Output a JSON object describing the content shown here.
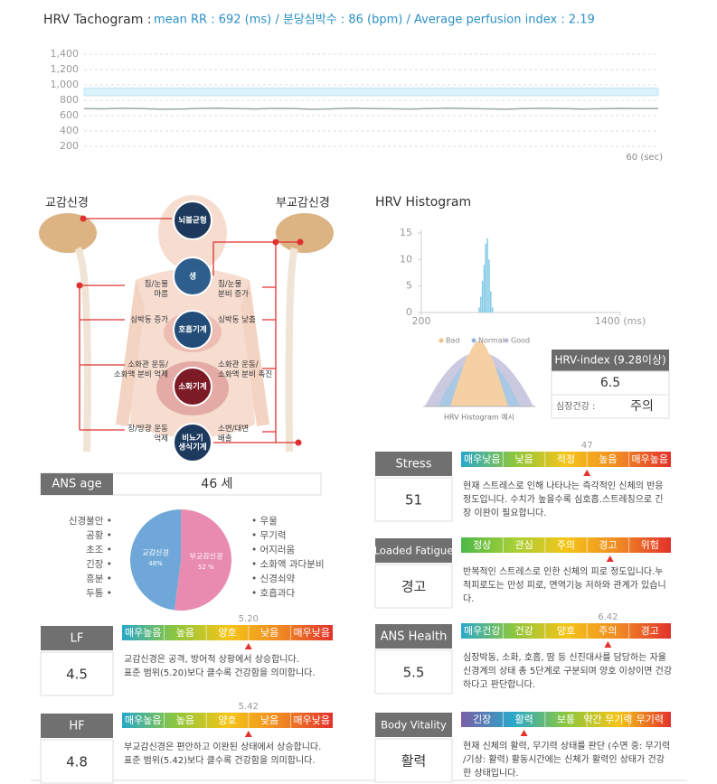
{
  "tachogram": {
    "label": "HRV Tachogram :",
    "summary": "mean RR : 692 (ms) / 분당심박수 : 86 (bpm) / Average perfusion index : 2.19"
  },
  "chart_data": [
    {
      "type": "line",
      "x": [
        0,
        2,
        4,
        6,
        8,
        10,
        12,
        14,
        16,
        18,
        20,
        22,
        24,
        26,
        28,
        30,
        32,
        34,
        36,
        38,
        40,
        42,
        44,
        46,
        48,
        50,
        52,
        54,
        56,
        58,
        60
      ],
      "values": [
        692,
        688,
        695,
        690,
        684,
        686,
        693,
        698,
        691,
        687,
        694,
        690,
        682,
        688,
        696,
        692,
        689,
        685,
        691,
        697,
        693,
        688,
        684,
        690,
        695,
        691,
        686,
        689,
        694,
        692,
        690
      ],
      "xlim": [
        0,
        60
      ],
      "xlabel": "60 (sec)",
      "ylim": [
        200,
        1400
      ],
      "yticks": [
        {
          "value": 1400,
          "label": "1,400"
        },
        {
          "value": 1200,
          "label": "1,200"
        },
        {
          "value": 1000,
          "label": "1,000"
        },
        800,
        600,
        400,
        200
      ],
      "grid": true,
      "color": "#9aa8aa",
      "band": [
        860,
        960
      ],
      "band_color": "#d9f1fa"
    },
    {
      "type": "histogram",
      "title": "HRV Histogram",
      "bins": [
        545,
        555,
        565,
        575,
        585,
        595,
        605,
        615,
        625,
        635
      ],
      "values": [
        1,
        3,
        6,
        9,
        13,
        14,
        10,
        4,
        1
      ],
      "xlim": [
        200,
        1400
      ],
      "xticks": [
        200,
        {
          "value": 1400,
          "label": "1400 (ms)"
        }
      ],
      "ylim": [
        0,
        15
      ],
      "yticks": [
        0,
        5,
        10,
        15
      ],
      "color": "#7ec8e6"
    },
    {
      "type": "pie",
      "categories": [
        "교감신경",
        "부교감신경"
      ],
      "values": [
        48,
        52
      ],
      "value_labels": [
        "48%",
        "52 %"
      ],
      "colors": [
        "#6fa8d8",
        "#e98bb0"
      ]
    }
  ],
  "ans_diagram": {
    "left_title": "교감신경",
    "right_title": "부교감신경",
    "nodes": [
      [
        "뇌불균형"
      ],
      [
        "생"
      ],
      [
        "호흡기계"
      ],
      [
        "소화기계"
      ],
      [
        "비뇨기",
        "생식기계"
      ]
    ],
    "left_labels": [
      [
        "침/눈물",
        "마름"
      ],
      [
        "심박동 증가"
      ],
      [
        "소화관 운동/",
        "소화액 분비 억제"
      ],
      [
        "장/방광 운동",
        "억제"
      ]
    ],
    "right_labels": [
      [
        "침/눈물",
        "분비 증가"
      ],
      [
        "심박동 낮춤"
      ],
      [
        "소화관 운동/",
        "소화액 분비 촉진"
      ],
      [
        "소변/대변",
        "배출"
      ]
    ]
  },
  "ans_age": {
    "label": "ANS age",
    "value": "46 세"
  },
  "symptoms": {
    "left": [
      "신경불안 •",
      "공황 •",
      "초조 •",
      "긴장 •",
      "흥분 •",
      "두통 •"
    ],
    "right": [
      "• 우울",
      "• 무기력",
      "• 어지러움",
      "• 소화액 과다분비",
      "• 신경쇠약",
      "• 호흡과다"
    ]
  },
  "hrv_example": {
    "legend": [
      {
        "name": "Bad",
        "color": "#f2c185"
      },
      {
        "name": "Normal",
        "color": "#8db6dc"
      },
      {
        "name": "Good",
        "color": "#b9b7d6"
      }
    ],
    "caption": "HRV Histogram 예시"
  },
  "hrv_index": {
    "title": "HRV-index (9.28이상)",
    "value": "6.5",
    "label": "심장건강 :",
    "status": "주의"
  },
  "indicators": [
    {
      "label": "LF",
      "value": "4.5",
      "scale": [
        "매우높음",
        "높음",
        "양호",
        "낮음",
        "매우낮음"
      ],
      "reference": "5.20",
      "colors": [
        "#2aa8c9",
        "#8cc63f",
        "#f5c518",
        "#f08a24",
        "#e2322b"
      ],
      "description": [
        "교감신경은 공격, 방어적 상황에서 상승합니다.",
        "표준 범위(5.20)보다 클수록 건강함을 의미합니다."
      ]
    },
    {
      "label": "HF",
      "value": "4.8",
      "scale": [
        "매우높음",
        "높음",
        "양호",
        "낮음",
        "매우낮음"
      ],
      "reference": "5.42",
      "colors": [
        "#2aa8c9",
        "#8cc63f",
        "#f5c518",
        "#f08a24",
        "#e2322b"
      ],
      "description": [
        "부교감신경은 편안하고 이완된 상태에서 상승합니다.",
        "표준 범위(5.42)보다 클수록 건강함을 의미합니다."
      ]
    },
    {
      "label": "Stress",
      "value": "51",
      "scale": [
        "매우낮음",
        "낮음",
        "적정",
        "높음",
        "매우높음"
      ],
      "reference": "47",
      "colors": [
        "#2aa8c9",
        "#8cc63f",
        "#f5c518",
        "#f08a24",
        "#e2322b"
      ],
      "description": [
        "현재 스트레스로 인해 나타나는 즉각적인 신체의 반응",
        "정도입니다. 수치가 높을수록 심호흡.스트레칭으로 긴",
        "장 이완이 필요합니다."
      ]
    },
    {
      "label": "Loaded Fatigue",
      "value": "경고",
      "scale": [
        "정상",
        "관심",
        "주의",
        "경고",
        "위험"
      ],
      "colors": [
        "#4cb848",
        "#a6cf38",
        "#f5c518",
        "#f08a24",
        "#e2322b"
      ],
      "description": [
        "반복적인 스트레스로 인한 신체의 피로 정도입니다.누",
        "적피로도는 만성 피로, 면역기능 저하와 관계가 있습니",
        "다."
      ]
    },
    {
      "label": "ANS Health",
      "value": "5.5",
      "scale": [
        "매우건강",
        "건강",
        "양호",
        "주의",
        "경고"
      ],
      "reference": "6.42",
      "colors": [
        "#2aa8c9",
        "#8cc63f",
        "#f5c518",
        "#f08a24",
        "#e2322b"
      ],
      "description": [
        "심장박동, 소화, 호흡, 땀 등 신진대사를 담당하는 자율",
        "신경계의 상태 총 5단계로 구분되며 양호 이상이면 건강",
        "하다고 판단합니다."
      ]
    },
    {
      "label": "Body Vitality",
      "value": "활력",
      "scale": [
        "긴장",
        "활력",
        "보통",
        "약간 무기력",
        "무기력"
      ],
      "colors": [
        "#7b5ea7",
        "#2aa8c9",
        "#8cc63f",
        "#f5c518",
        "#e2322b"
      ],
      "description": [
        "현재 신체의 활력, 무기력 상태를 판단 (수면 중: 무기력",
        "/기상: 활력) 활동시간에는 신체가 활력인 상태가 건강",
        "한 상태입니다."
      ]
    }
  ]
}
